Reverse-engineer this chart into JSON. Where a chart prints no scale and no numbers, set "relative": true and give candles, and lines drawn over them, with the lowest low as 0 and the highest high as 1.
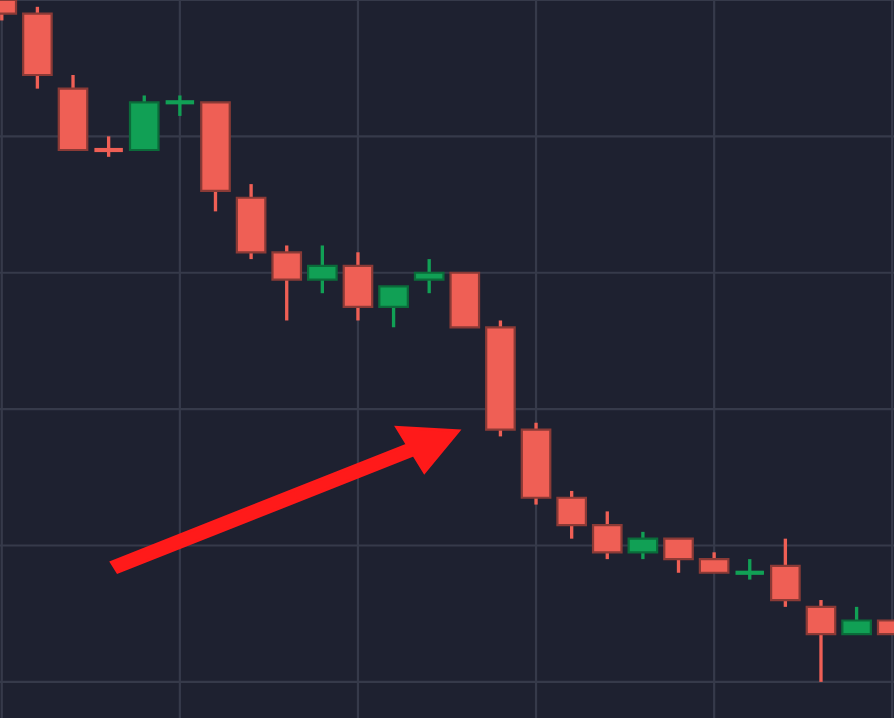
{
  "chart_data": {
    "type": "candlestick",
    "relative": true,
    "grid": true,
    "categories": [
      null,
      null,
      null,
      null,
      null,
      null,
      null,
      null,
      null,
      null,
      null,
      null,
      null,
      null,
      null,
      null,
      null,
      null,
      null,
      null,
      null,
      null,
      null,
      null,
      null,
      null
    ],
    "colors": [
      "#ef5f55",
      "#ef5f55",
      "#ef5f55",
      "#ef5f55",
      "#11a055",
      "#11a055",
      "#ef5f55",
      "#ef5f55",
      "#ef5f55",
      "#11a055",
      "#ef5f55",
      "#11a055",
      "#11a055",
      "#ef5f55",
      "#ef5f55",
      "#ef5f55",
      "#ef5f55",
      "#ef5f55",
      "#11a055",
      "#ef5f55",
      "#ef5f55",
      "#11a055",
      "#ef5f55",
      "#ef5f55",
      "#11a055",
      "#ef5f55"
    ],
    "ohlc": [
      [
        1.0,
        1.0,
        0.97,
        0.98
      ],
      [
        0.98,
        0.99,
        0.87,
        0.89
      ],
      [
        0.87,
        0.89,
        0.78,
        0.78
      ],
      [
        0.78,
        0.8,
        0.77,
        0.78
      ],
      [
        0.78,
        0.86,
        0.78,
        0.85
      ],
      [
        0.85,
        0.86,
        0.83,
        0.85
      ],
      [
        0.85,
        0.85,
        0.69,
        0.72
      ],
      [
        0.71,
        0.73,
        0.62,
        0.63
      ],
      [
        0.63,
        0.64,
        0.53,
        0.59
      ],
      [
        0.59,
        0.64,
        0.57,
        0.61
      ],
      [
        0.61,
        0.63,
        0.53,
        0.55
      ],
      [
        0.55,
        0.58,
        0.52,
        0.58
      ],
      [
        0.59,
        0.62,
        0.57,
        0.6
      ],
      [
        0.6,
        0.6,
        0.52,
        0.52
      ],
      [
        0.52,
        0.53,
        0.36,
        0.37
      ],
      [
        0.37,
        0.38,
        0.26,
        0.27
      ],
      [
        0.27,
        0.28,
        0.21,
        0.23
      ],
      [
        0.23,
        0.25,
        0.18,
        0.19
      ],
      [
        0.19,
        0.22,
        0.18,
        0.21
      ],
      [
        0.21,
        0.21,
        0.16,
        0.18
      ],
      [
        0.18,
        0.19,
        0.16,
        0.16
      ],
      [
        0.16,
        0.18,
        0.15,
        0.16
      ],
      [
        0.17,
        0.21,
        0.11,
        0.12
      ],
      [
        0.11,
        0.12,
        0.0,
        0.07
      ],
      [
        0.07,
        0.11,
        0.07,
        0.09
      ],
      [
        0.09,
        0.09,
        0.07,
        0.07
      ]
    ]
  }
}
